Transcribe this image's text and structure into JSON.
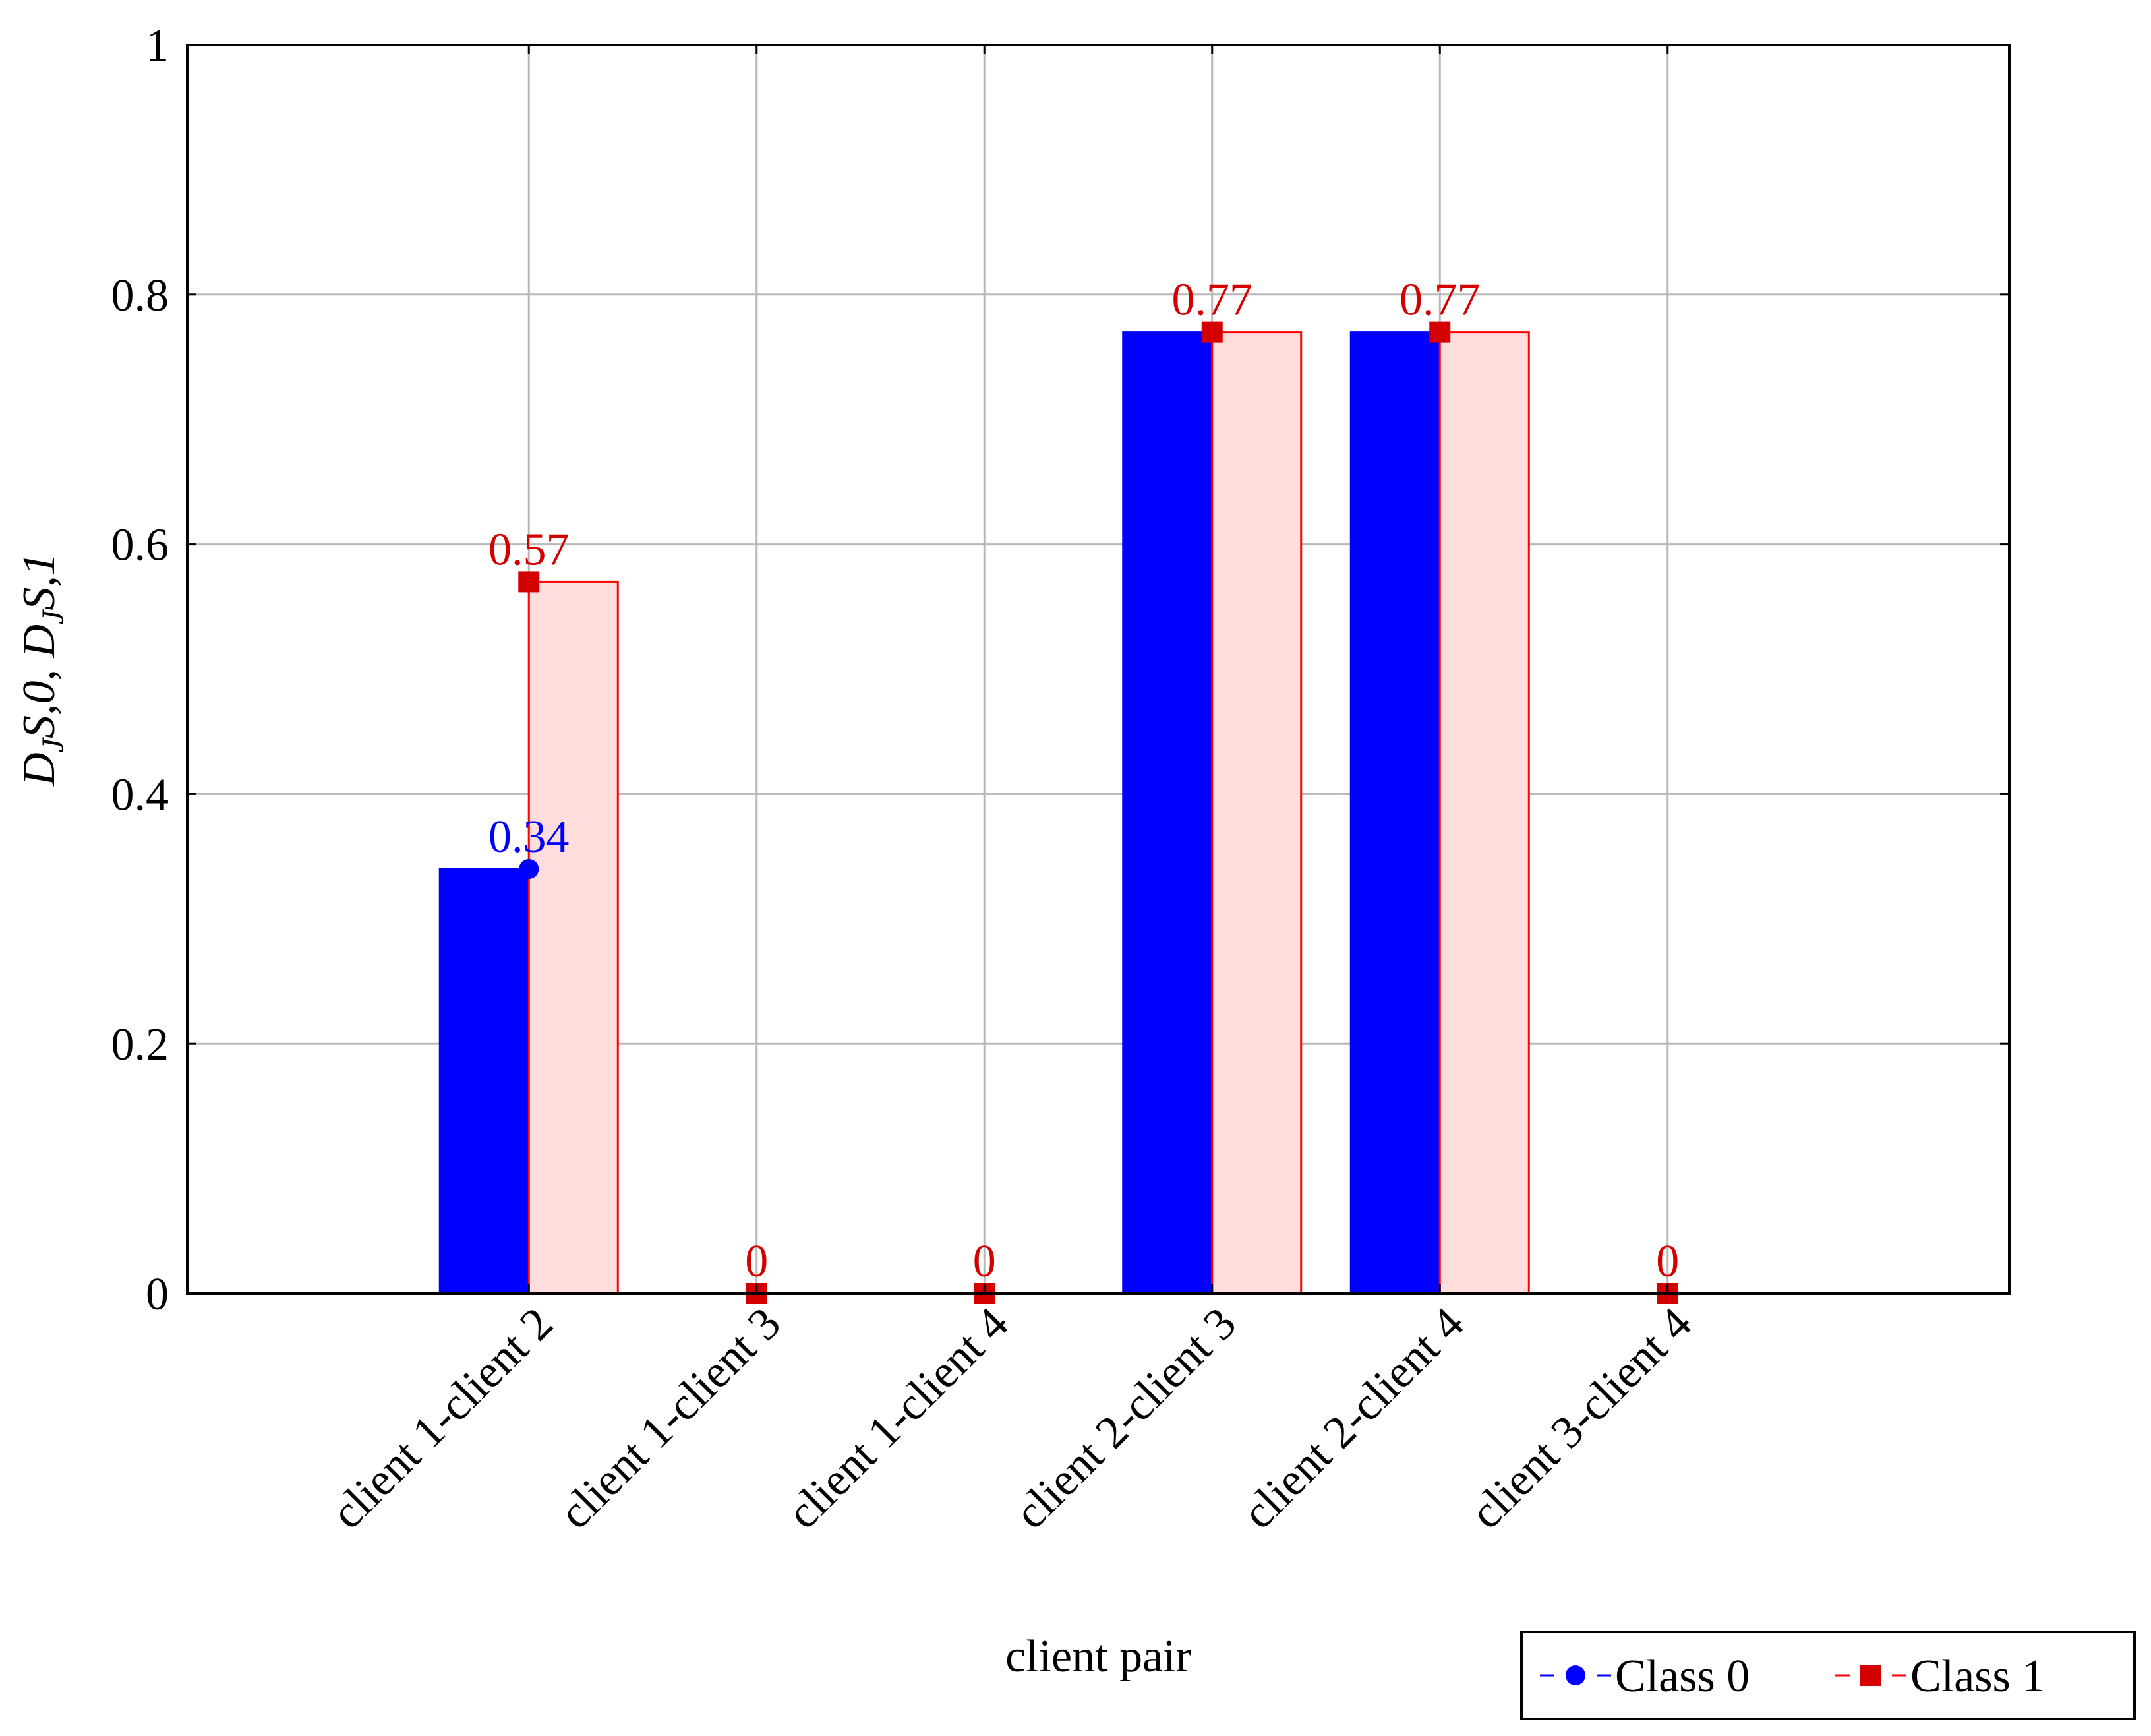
{
  "chart_data": {
    "type": "bar",
    "xlabel": "client pair",
    "ylabel": "D_JS,0, D_JS,1",
    "ylim": [
      0,
      1
    ],
    "yticks": [
      "0",
      "0.2",
      "0.4",
      "0.6",
      "0.8",
      "1"
    ],
    "grid": true,
    "legend_position": "bottom-right, outside plot",
    "categories": [
      "client 1-client 2",
      "client 1-client 3",
      "client 1-client 4",
      "client 2-client 3",
      "client 2-client 4",
      "client 3-client 4"
    ],
    "series": [
      {
        "name": "Class 0",
        "marker": "circle",
        "color": "#0000ff",
        "fill": "#0000ff",
        "values": [
          0.34,
          0,
          0,
          0.77,
          0.77,
          0
        ],
        "labels": [
          "0.34",
          "",
          "",
          "",
          "",
          ""
        ]
      },
      {
        "name": "Class 1",
        "marker": "square",
        "color": "#ff0000",
        "fill": "#ffdddd",
        "marker_color": "#d40000",
        "values": [
          0.57,
          0,
          0,
          0.77,
          0.77,
          0
        ],
        "labels": [
          "0.57",
          "0",
          "0",
          "0.77",
          "0.77",
          "0"
        ]
      }
    ]
  }
}
